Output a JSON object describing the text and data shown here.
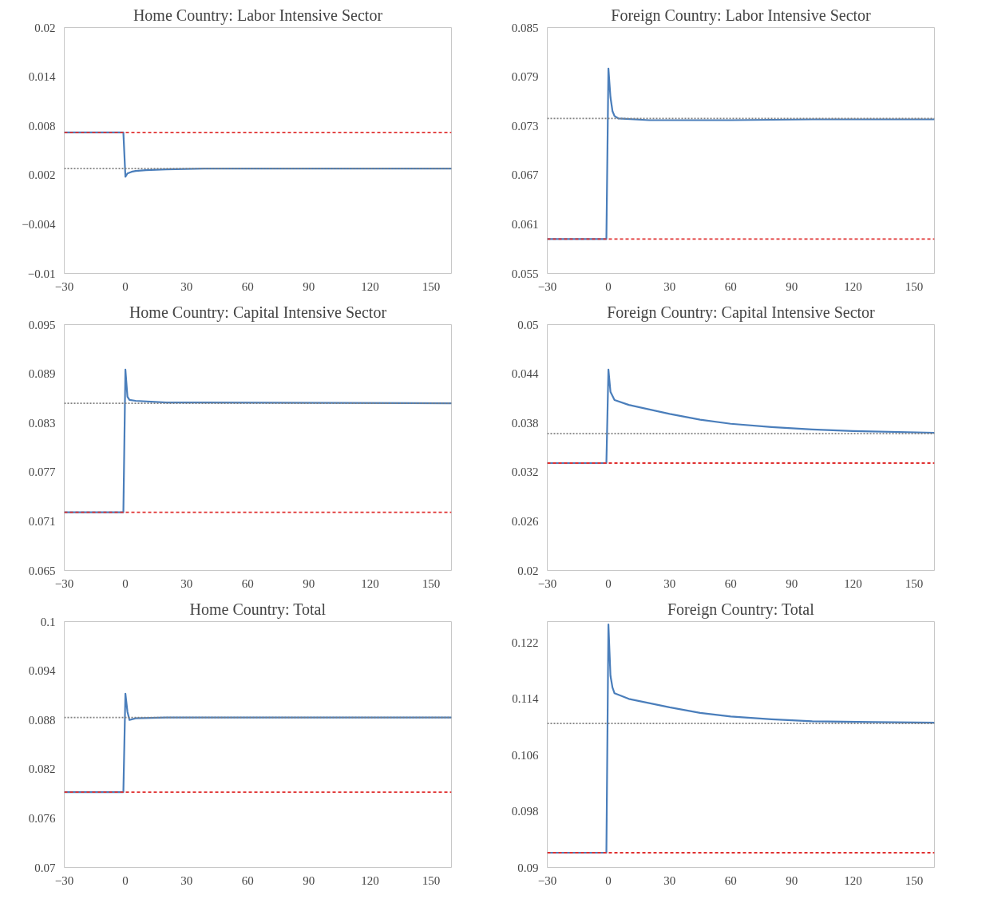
{
  "chart_data": [
    {
      "type": "line",
      "title": "Home Country: Labor Intensive Sector",
      "xlim": [
        -30,
        160
      ],
      "xticks": [
        -30,
        0,
        30,
        60,
        90,
        120,
        150
      ],
      "ylim": [
        -0.01,
        0.02
      ],
      "yticks": [
        -0.01,
        -0.004,
        0.002,
        0.008,
        0.014,
        0.02
      ],
      "line_style": "solid",
      "series": [
        {
          "color": "#4a7ebb",
          "x": [
            -30,
            -1,
            0,
            1,
            3,
            5,
            10,
            20,
            40,
            160
          ],
          "values": [
            0.0072,
            0.0072,
            0.0018,
            0.0022,
            0.0024,
            0.0025,
            0.0026,
            0.0027,
            0.0028,
            0.0028
          ]
        }
      ],
      "ref_lines": [
        {
          "axis": "y",
          "value": 0.0072,
          "color": "#e03030",
          "line_style": "dashed"
        },
        {
          "axis": "y",
          "value": 0.0028,
          "color": "#808080",
          "line_style": "dotted"
        }
      ]
    },
    {
      "type": "line",
      "title": "Foreign Country: Labor Intensive Sector",
      "xlim": [
        -30,
        160
      ],
      "xticks": [
        -30,
        0,
        30,
        60,
        90,
        120,
        150
      ],
      "ylim": [
        0.055,
        0.085
      ],
      "yticks": [
        0.055,
        0.061,
        0.067,
        0.073,
        0.079,
        0.085
      ],
      "line_style": "solid",
      "series": [
        {
          "color": "#4a7ebb",
          "x": [
            -30,
            -1,
            0,
            1,
            2,
            3,
            5,
            20,
            60,
            100,
            160
          ],
          "values": [
            0.0592,
            0.0592,
            0.08,
            0.0765,
            0.0748,
            0.0742,
            0.0739,
            0.0737,
            0.0737,
            0.0738,
            0.0738
          ]
        }
      ],
      "ref_lines": [
        {
          "axis": "y",
          "value": 0.0592,
          "color": "#e03030",
          "line_style": "dashed"
        },
        {
          "axis": "y",
          "value": 0.0739,
          "color": "#808080",
          "line_style": "dotted"
        }
      ]
    },
    {
      "type": "line",
      "title": "Home Country: Capital Intensive Sector",
      "xlim": [
        -30,
        160
      ],
      "xticks": [
        -30,
        0,
        30,
        60,
        90,
        120,
        150
      ],
      "ylim": [
        0.065,
        0.095
      ],
      "yticks": [
        0.065,
        0.071,
        0.077,
        0.083,
        0.089,
        0.095
      ],
      "line_style": "solid",
      "series": [
        {
          "color": "#4a7ebb",
          "x": [
            -30,
            -1,
            0,
            1,
            2,
            5,
            20,
            160
          ],
          "values": [
            0.0721,
            0.0721,
            0.0895,
            0.0862,
            0.0858,
            0.0857,
            0.0855,
            0.0854
          ]
        }
      ],
      "ref_lines": [
        {
          "axis": "y",
          "value": 0.0721,
          "color": "#e03030",
          "line_style": "dashed"
        },
        {
          "axis": "y",
          "value": 0.0854,
          "color": "#808080",
          "line_style": "dotted"
        }
      ]
    },
    {
      "type": "line",
      "title": "Foreign Country: Capital Intensive Sector",
      "xlim": [
        -30,
        160
      ],
      "xticks": [
        -30,
        0,
        30,
        60,
        90,
        120,
        150
      ],
      "ylim": [
        0.02,
        0.05
      ],
      "yticks": [
        0.02,
        0.026,
        0.032,
        0.038,
        0.044,
        0.05
      ],
      "line_style": "solid",
      "series": [
        {
          "color": "#4a7ebb",
          "x": [
            -30,
            -1,
            0,
            1,
            3,
            10,
            30,
            45,
            60,
            80,
            100,
            120,
            160
          ],
          "values": [
            0.0331,
            0.0331,
            0.0445,
            0.0418,
            0.0408,
            0.0402,
            0.0391,
            0.0384,
            0.0379,
            0.0375,
            0.0372,
            0.037,
            0.0368
          ]
        }
      ],
      "ref_lines": [
        {
          "axis": "y",
          "value": 0.0331,
          "color": "#e03030",
          "line_style": "dashed"
        },
        {
          "axis": "y",
          "value": 0.0367,
          "color": "#808080",
          "line_style": "dotted"
        }
      ]
    },
    {
      "type": "line",
      "title": "Home Country: Total",
      "xlim": [
        -30,
        160
      ],
      "xticks": [
        -30,
        0,
        30,
        60,
        90,
        120,
        150
      ],
      "ylim": [
        0.07,
        0.1
      ],
      "yticks": [
        0.07,
        0.076,
        0.082,
        0.088,
        0.094,
        0.1
      ],
      "line_style": "solid",
      "series": [
        {
          "color": "#4a7ebb",
          "x": [
            -30,
            -1,
            0,
            1,
            2,
            5,
            20,
            160
          ],
          "values": [
            0.0792,
            0.0792,
            0.0912,
            0.089,
            0.088,
            0.0882,
            0.0883,
            0.0883
          ]
        }
      ],
      "ref_lines": [
        {
          "axis": "y",
          "value": 0.0792,
          "color": "#e03030",
          "line_style": "dashed"
        },
        {
          "axis": "y",
          "value": 0.0883,
          "color": "#808080",
          "line_style": "dotted"
        }
      ]
    },
    {
      "type": "line",
      "title": "Foreign Country: Total",
      "xlim": [
        -30,
        160
      ],
      "xticks": [
        -30,
        0,
        30,
        60,
        90,
        120,
        150
      ],
      "ylim": [
        0.09,
        0.125
      ],
      "yticks": [
        0.09,
        0.098,
        0.106,
        0.114,
        0.122
      ],
      "line_style": "solid",
      "series": [
        {
          "color": "#4a7ebb",
          "x": [
            -30,
            -1,
            0,
            1,
            2,
            3,
            10,
            30,
            45,
            60,
            80,
            100,
            130,
            160
          ],
          "values": [
            0.0921,
            0.0921,
            0.1246,
            0.1173,
            0.1156,
            0.1148,
            0.114,
            0.1128,
            0.112,
            0.1115,
            0.1111,
            0.1108,
            0.1107,
            0.1106
          ]
        }
      ],
      "ref_lines": [
        {
          "axis": "y",
          "value": 0.0921,
          "color": "#e03030",
          "line_style": "dashed"
        },
        {
          "axis": "y",
          "value": 0.1105,
          "color": "#808080",
          "line_style": "dotted"
        }
      ]
    }
  ]
}
